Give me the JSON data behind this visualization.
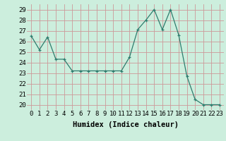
{
  "x": [
    0,
    1,
    2,
    3,
    4,
    5,
    6,
    7,
    8,
    9,
    10,
    11,
    12,
    13,
    14,
    15,
    16,
    17,
    18,
    19,
    20,
    21,
    22,
    23
  ],
  "y": [
    26.5,
    25.2,
    26.4,
    24.3,
    24.3,
    23.2,
    23.2,
    23.2,
    23.2,
    23.2,
    23.2,
    23.2,
    24.5,
    27.1,
    28.0,
    29.0,
    27.1,
    29.0,
    26.6,
    22.7,
    20.5,
    20.0,
    20.0,
    20.0
  ],
  "title": "",
  "xlabel": "Humidex (Indice chaleur)",
  "ylabel": "",
  "ylim": [
    19.5,
    29.5
  ],
  "xlim": [
    -0.5,
    23.5
  ],
  "line_color": "#2e7d6e",
  "marker": "+",
  "bg_color": "#cceedd",
  "grid_color_major": "#aaccbb",
  "grid_color_minor": "#bbddcc",
  "tick_label_fontsize": 6.5,
  "xlabel_fontsize": 7.5
}
